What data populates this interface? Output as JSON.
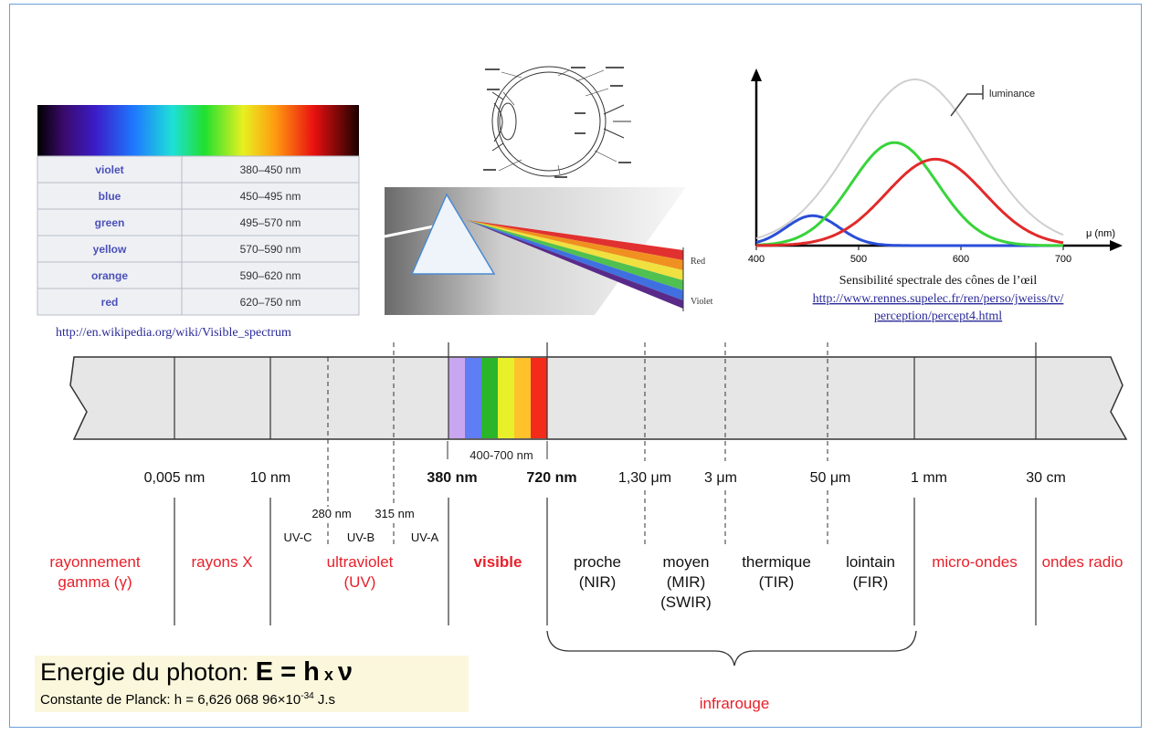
{
  "colors": {
    "border": "#6a9fd6",
    "band_fill": "#e6e6e6",
    "red_label": "#e8202a",
    "link": "#3a3ab0",
    "color_name": "#4b50b8",
    "cone_blue": "#2a4ed8",
    "cone_green": "#38d43a",
    "cone_red": "#e22a2a",
    "luminance": "#cfcfcf"
  },
  "color_table": {
    "rows": [
      {
        "name": "violet",
        "range": "380–450 nm"
      },
      {
        "name": "blue",
        "range": "450–495 nm"
      },
      {
        "name": "green",
        "range": "495–570 nm"
      },
      {
        "name": "yellow",
        "range": "570–590 nm"
      },
      {
        "name": "orange",
        "range": "590–620 nm"
      },
      {
        "name": "red",
        "range": "620–750 nm"
      }
    ],
    "source_link": "http://en.wikipedia.org/wiki/Visible_spectrum"
  },
  "prism": {
    "label_red": "Red",
    "label_violet": "Violet"
  },
  "cone_chart": {
    "chart_data": {
      "type": "line",
      "xlabel": "μ (nm)",
      "x_ticks": [
        400,
        500,
        600,
        700
      ],
      "xlim": [
        400,
        700
      ],
      "series": [
        {
          "name": "luminance",
          "color": "#cfcfcf",
          "peak_x": 555,
          "peak_y": 1.0
        },
        {
          "color": "#2a4ed8",
          "peak_x": 455,
          "peak_y": 0.18
        },
        {
          "color": "#38d43a",
          "peak_x": 535,
          "peak_y": 0.62
        },
        {
          "color": "#e22a2a",
          "peak_x": 575,
          "peak_y": 0.52
        }
      ]
    },
    "caption": "Sensibilité spectrale des cônes de l’œil",
    "link_line1": "http://www.rennes.supelec.fr/ren/perso/jweiss/tv/",
    "link_line2": "perception/percept4.html"
  },
  "scale": {
    "visible_range": "400-700 nm",
    "ticks": [
      {
        "label": "0,005 nm"
      },
      {
        "label": "10 nm"
      },
      {
        "label": "380 nm",
        "bold": true
      },
      {
        "label": "720 nm",
        "bold": true
      },
      {
        "label": "1,30 μm"
      },
      {
        "label": "3 μm"
      },
      {
        "label": "50 μm"
      },
      {
        "label": "1 mm"
      },
      {
        "label": "30 cm"
      }
    ],
    "uv_ticks": [
      "280 nm",
      "315 nm"
    ],
    "uv_subbands": [
      "UV-C",
      "UV-B",
      "UV-A"
    ]
  },
  "regions": [
    {
      "line1": "rayonnement",
      "line2": "gamma (γ)"
    },
    {
      "line1": "rayons X"
    },
    {
      "line1": "ultraviolet",
      "line2": "(UV)"
    },
    {
      "line1": "visible"
    },
    {
      "line1": "proche",
      "line2": "(NIR)"
    },
    {
      "line1": "moyen",
      "line2": "(MIR)",
      "line3": "(SWIR)"
    },
    {
      "line1": "thermique",
      "line2": "(TIR)"
    },
    {
      "line1": "lointain",
      "line2": "(FIR)"
    },
    {
      "line1": "micro-ondes"
    },
    {
      "line1": "ondes radio"
    }
  ],
  "infrared_label": "infrarouge",
  "energy": {
    "prefix": "Energie du photon: ",
    "e": "E",
    "eq": " = ",
    "h": "h",
    "times": " x ",
    "nu": "ν",
    "planck_prefix": "Constante de Planck: h = 6,626 068 96×10",
    "planck_exp": "-34",
    "planck_unit": " J.s"
  }
}
